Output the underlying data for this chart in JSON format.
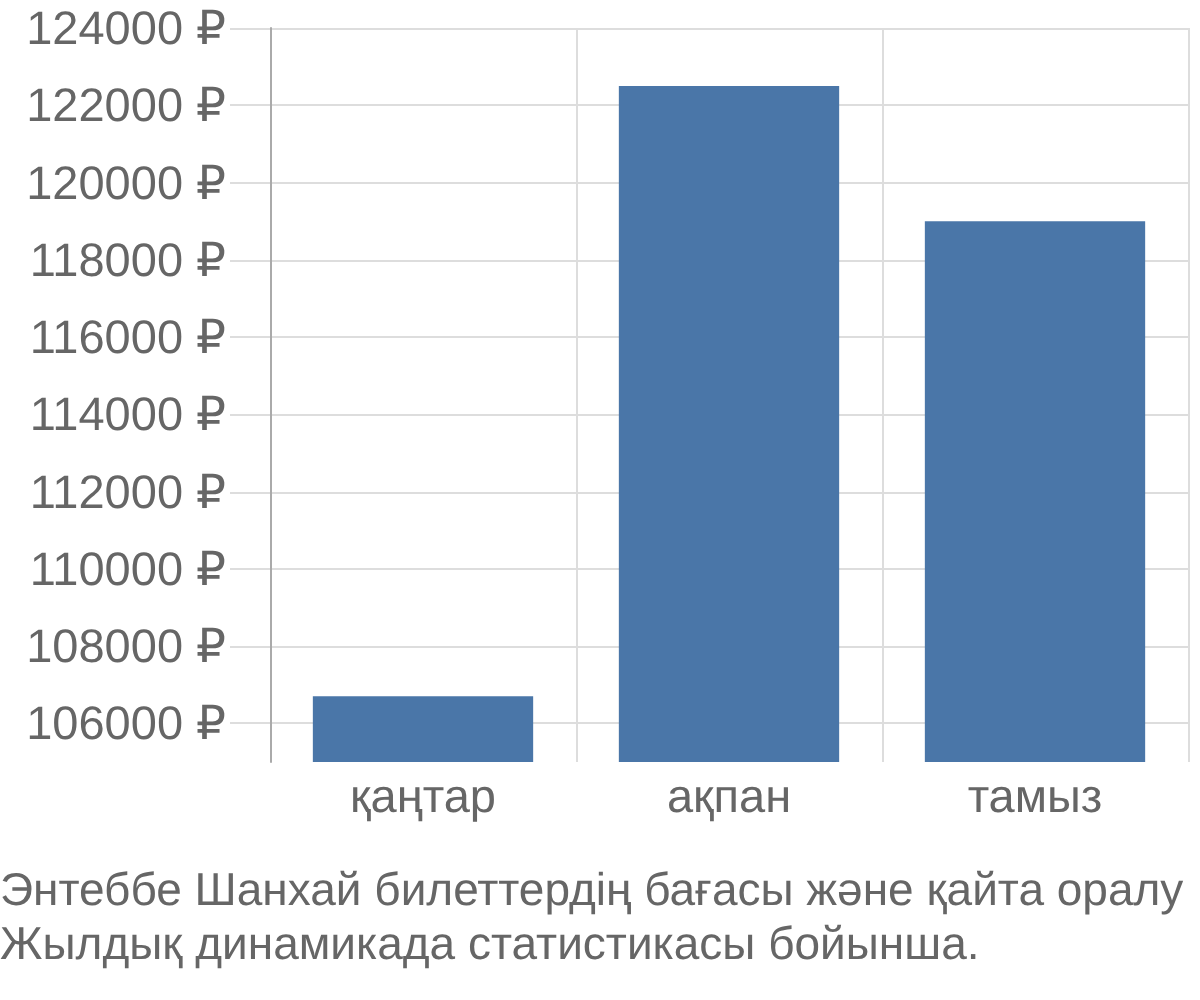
{
  "chart_data": {
    "type": "bar",
    "categories": [
      "қаңтар",
      "ақпан",
      "тамыз"
    ],
    "values": [
      106700,
      122500,
      119000
    ],
    "color": "#4a76a8",
    "ylim": [
      105000,
      124000
    ],
    "yticks": [
      {
        "value": 106000,
        "label": "106000 ₽"
      },
      {
        "value": 108000,
        "label": "108000 ₽"
      },
      {
        "value": 110000,
        "label": "110000 ₽"
      },
      {
        "value": 112000,
        "label": "112000 ₽"
      },
      {
        "value": 114000,
        "label": "114000 ₽"
      },
      {
        "value": 116000,
        "label": "116000 ₽"
      },
      {
        "value": 118000,
        "label": "118000 ₽"
      },
      {
        "value": 120000,
        "label": "120000 ₽"
      },
      {
        "value": 122000,
        "label": "122000 ₽"
      },
      {
        "value": 124000,
        "label": "124000 ₽"
      }
    ],
    "grid": true,
    "annotations": [
      "Энтеббе Шанхай билеттердің бағасы және қайта оралу",
      "Жылдық динамикада статистикасы бойынша."
    ]
  }
}
